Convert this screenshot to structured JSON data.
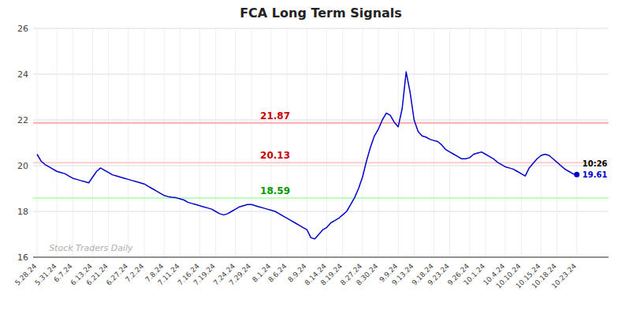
{
  "chart_data": {
    "type": "line",
    "title": "FCA Long Term Signals",
    "categories": [
      "5.28.24",
      null,
      null,
      null,
      null,
      "5.31.24",
      null,
      null,
      null,
      "6.7.24",
      null,
      null,
      null,
      null,
      "6.13.24",
      null,
      null,
      null,
      "6.21.24",
      null,
      null,
      null,
      null,
      "6.27.24",
      null,
      null,
      null,
      "7.2.24",
      null,
      null,
      null,
      null,
      "7.8.24",
      null,
      null,
      null,
      "7.11.24",
      null,
      null,
      null,
      null,
      "7.16.24",
      null,
      null,
      null,
      "7.19.24",
      null,
      null,
      null,
      null,
      "7.24.24",
      null,
      null,
      null,
      "7.29.24",
      null,
      null,
      null,
      null,
      "8.1.24",
      null,
      null,
      null,
      "8.6.24",
      null,
      null,
      null,
      null,
      "8.9.24",
      null,
      null,
      null,
      null,
      "8.14.24",
      null,
      null,
      null,
      "8.19.24",
      null,
      null,
      null,
      null,
      "8.27.24",
      null,
      null,
      null,
      "8.30.24",
      null,
      null,
      null,
      null,
      "9.9.24",
      null,
      null,
      null,
      "9.13.24",
      null,
      null,
      null,
      null,
      "9.18.24",
      null,
      null,
      null,
      "9.23.24",
      null,
      null,
      null,
      null,
      "9.26.24",
      null,
      null,
      null,
      "10.1.24",
      null,
      null,
      null,
      null,
      "10.4.24",
      null,
      null,
      null,
      "10.10.24",
      null,
      null,
      null,
      null,
      "10.15.24",
      null,
      null,
      null,
      "10.18.24",
      null,
      null,
      null,
      null,
      "10.23.24"
    ],
    "values": [
      20.5,
      20.2,
      20.05,
      19.95,
      19.85,
      19.75,
      19.7,
      19.65,
      19.55,
      19.45,
      19.4,
      19.35,
      19.3,
      19.25,
      19.5,
      19.75,
      19.9,
      19.8,
      19.7,
      19.6,
      19.55,
      19.5,
      19.45,
      19.4,
      19.35,
      19.3,
      19.25,
      19.2,
      19.1,
      19.0,
      18.9,
      18.8,
      18.7,
      18.65,
      18.62,
      18.6,
      18.55,
      18.5,
      18.4,
      18.35,
      18.3,
      18.25,
      18.2,
      18.15,
      18.1,
      18.0,
      17.9,
      17.85,
      17.9,
      18.0,
      18.1,
      18.2,
      18.25,
      18.3,
      18.3,
      18.25,
      18.2,
      18.15,
      18.1,
      18.05,
      18.0,
      17.9,
      17.8,
      17.7,
      17.6,
      17.5,
      17.4,
      17.3,
      17.2,
      16.85,
      16.8,
      17.0,
      17.2,
      17.3,
      17.5,
      17.6,
      17.7,
      17.85,
      18.0,
      18.3,
      18.6,
      19.0,
      19.5,
      20.2,
      20.8,
      21.3,
      21.6,
      22.0,
      22.3,
      22.2,
      21.9,
      21.7,
      22.5,
      24.1,
      23.2,
      22.0,
      21.5,
      21.3,
      21.25,
      21.15,
      21.1,
      21.05,
      20.9,
      20.7,
      20.6,
      20.5,
      20.4,
      20.3,
      20.3,
      20.35,
      20.5,
      20.55,
      20.6,
      20.5,
      20.4,
      20.3,
      20.15,
      20.05,
      19.95,
      19.9,
      19.85,
      19.75,
      19.65,
      19.55,
      19.9,
      20.1,
      20.3,
      20.45,
      20.5,
      20.45,
      20.3,
      20.15,
      20.0,
      19.85,
      19.75,
      19.65,
      19.61
    ],
    "color": "#0000cc",
    "reference_lines": [
      {
        "value": 21.87,
        "label": "21.87",
        "color": "#ffaaaa",
        "label_color": "#cc0000"
      },
      {
        "value": 20.13,
        "label": "20.13",
        "color": "#ffcccc",
        "label_color": "#cc0000"
      },
      {
        "value": 18.59,
        "label": "18.59",
        "color": "#bbffbb",
        "label_color": "#009900"
      }
    ],
    "last_point": {
      "time_label": "10:26",
      "value_label": "19.61",
      "color": "#0000cc"
    },
    "watermark": {
      "text": "Stock Traders Daily",
      "color": "#b0b0b0"
    },
    "ylim": [
      16,
      26
    ],
    "yticks": [
      16,
      18,
      20,
      22,
      24,
      26
    ],
    "grid": true
  }
}
